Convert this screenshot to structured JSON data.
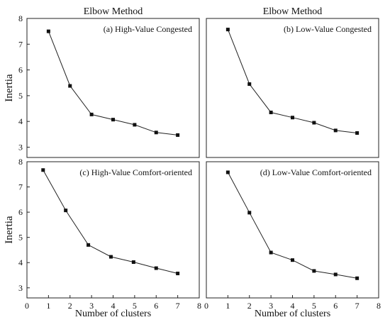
{
  "chart_data": [
    {
      "type": "line",
      "title": "Elbow Method",
      "annotation": "(a)  High-Value Congested",
      "xlabel": "",
      "ylabel": "Inertia",
      "xlim": [
        0,
        8
      ],
      "ylim": [
        2.6,
        8
      ],
      "yticks": [
        3,
        4,
        5,
        6,
        7,
        8
      ],
      "xticks": [],
      "x": [
        1,
        2,
        3,
        4,
        5,
        6,
        7
      ],
      "values": [
        7.5,
        5.38,
        4.27,
        4.07,
        3.87,
        3.57,
        3.47
      ],
      "grid": false,
      "marker": "square"
    },
    {
      "type": "line",
      "title": "Elbow Method",
      "annotation": "(b)  Low-Value Congested",
      "xlabel": "",
      "ylabel": "",
      "xlim": [
        0,
        8
      ],
      "ylim": [
        2.6,
        8
      ],
      "yticks": [],
      "xticks": [],
      "x": [
        1,
        2,
        3,
        4,
        5,
        6,
        7
      ],
      "values": [
        7.57,
        5.45,
        4.35,
        4.15,
        3.95,
        3.65,
        3.55
      ],
      "grid": false,
      "marker": "square"
    },
    {
      "type": "line",
      "title": "",
      "annotation": "(c)  High-Value Comfort-oriented",
      "xlabel": "Number of clusters",
      "ylabel": "Inertia",
      "xlim": [
        0,
        8
      ],
      "ylim": [
        2.6,
        8
      ],
      "yticks": [
        3,
        4,
        5,
        6,
        7,
        8
      ],
      "xticks": [
        0,
        1,
        2,
        3,
        4,
        5,
        6,
        7,
        8
      ],
      "x": [
        0.75,
        1.8,
        2.85,
        3.9,
        4.95,
        6,
        7
      ],
      "values": [
        7.67,
        6.07,
        4.7,
        4.23,
        4.02,
        3.78,
        3.57
      ],
      "grid": false,
      "marker": "square"
    },
    {
      "type": "line",
      "title": "",
      "annotation": "(d)  Low-Value Comfort-oriented",
      "xlabel": "Number of clusters",
      "ylabel": "",
      "xlim": [
        0,
        8
      ],
      "ylim": [
        2.6,
        8
      ],
      "yticks": [],
      "xticks": [
        0,
        1,
        2,
        3,
        4,
        5,
        6,
        7,
        8
      ],
      "x": [
        1,
        2,
        3,
        4,
        5,
        6,
        7
      ],
      "values": [
        7.58,
        5.98,
        4.4,
        4.1,
        3.67,
        3.53,
        3.38
      ],
      "grid": false,
      "marker": "square"
    }
  ]
}
